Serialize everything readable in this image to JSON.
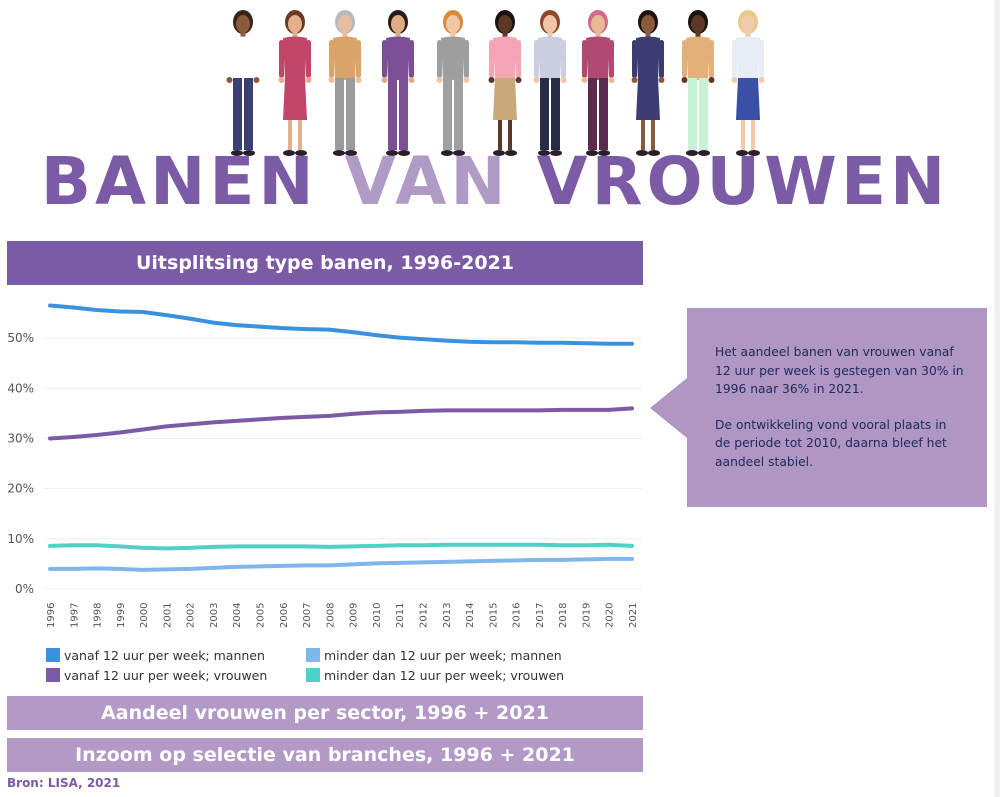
{
  "header": {
    "title_words": [
      "BANEN",
      "VAN",
      "VROUWEN"
    ]
  },
  "sections": {
    "chart_title": "Uitsplitsing type banen, 1996-2021",
    "sector_title": "Aandeel vrouwen per sector, 1996 + 2021",
    "branches_title": "Inzoom op selectie van branches, 1996 + 2021"
  },
  "callout": {
    "paragraphs": [
      "Het aandeel banen van vrouwen vanaf 12 uur per week is gestegen van 30% in 1996 naar 36% in 2021.",
      "De ontwikkeling vond vooral plaats in de periode tot 2010, daarna bleef het aandeel stabiel."
    ]
  },
  "source": "Bron: LISA, 2021",
  "illustration": {
    "icon": "women-group-illustration"
  },
  "colors": {
    "purple_dark": "#7b5aa6",
    "purple_light": "#b299c6",
    "callout_bg": "#b096c3",
    "series": [
      "#3a92df",
      "#7b5aa6",
      "#7fb6ec",
      "#4fd1c8"
    ]
  },
  "chart_data": {
    "type": "line",
    "x": [
      "1996",
      "1997",
      "1998",
      "1999",
      "2000",
      "2001",
      "2002",
      "2003",
      "2004",
      "2005",
      "2006",
      "2007",
      "2008",
      "2009",
      "2010",
      "2011",
      "2012",
      "2013",
      "2014",
      "2015",
      "2016",
      "2017",
      "2018",
      "2019",
      "2020",
      "2021"
    ],
    "series": [
      {
        "name": "vanaf 12 uur per week; mannen",
        "color": "#3a92df",
        "values": [
          56.5,
          56.1,
          55.6,
          55.3,
          55.2,
          54.6,
          53.9,
          53.1,
          52.6,
          52.3,
          52.0,
          51.8,
          51.7,
          51.2,
          50.6,
          50.1,
          49.8,
          49.5,
          49.3,
          49.2,
          49.2,
          49.1,
          49.1,
          49.0,
          48.9,
          48.9
        ]
      },
      {
        "name": "vanaf 12 uur per week; vrouwen",
        "color": "#7b5aa6",
        "values": [
          30.0,
          30.3,
          30.7,
          31.2,
          31.8,
          32.4,
          32.8,
          33.2,
          33.5,
          33.8,
          34.1,
          34.3,
          34.5,
          34.9,
          35.2,
          35.3,
          35.5,
          35.6,
          35.6,
          35.6,
          35.6,
          35.6,
          35.7,
          35.7,
          35.7,
          36.0
        ]
      },
      {
        "name": "minder dan 12 uur per week; mannen",
        "color": "#7fb6ec",
        "values": [
          4.0,
          4.0,
          4.1,
          4.0,
          3.8,
          3.9,
          4.0,
          4.2,
          4.4,
          4.5,
          4.6,
          4.7,
          4.7,
          4.9,
          5.1,
          5.2,
          5.3,
          5.4,
          5.5,
          5.6,
          5.7,
          5.8,
          5.8,
          5.9,
          6.0,
          6.0
        ]
      },
      {
        "name": "minder dan 12 uur per week; vrouwen",
        "color": "#4fd1c8",
        "values": [
          8.6,
          8.7,
          8.7,
          8.5,
          8.2,
          8.1,
          8.2,
          8.4,
          8.5,
          8.5,
          8.5,
          8.5,
          8.4,
          8.5,
          8.6,
          8.7,
          8.7,
          8.8,
          8.8,
          8.8,
          8.8,
          8.8,
          8.7,
          8.7,
          8.8,
          8.6
        ]
      }
    ],
    "y_ticks": [
      "0%",
      "10%",
      "20%",
      "30%",
      "40%",
      "50%"
    ],
    "ylim": [
      0,
      58
    ],
    "grid": true,
    "legend_position": "bottom",
    "title": "Uitsplitsing type banen, 1996-2021"
  }
}
